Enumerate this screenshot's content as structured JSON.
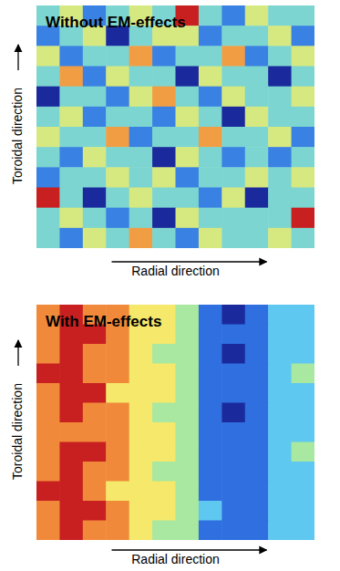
{
  "chart_data": [
    {
      "type": "heatmap",
      "title": "Without EM-effects",
      "x_label": "Radial direction",
      "y_label": "Toroidal direction",
      "tick_labels": false,
      "cells": [
        [
          0,
          1,
          -1,
          0,
          1,
          0,
          3,
          0,
          -1,
          1,
          0,
          0
        ],
        [
          -1,
          0,
          1,
          -2,
          0,
          1,
          1,
          -1,
          0,
          0,
          1,
          -1
        ],
        [
          1,
          -1,
          0,
          0,
          2,
          -1,
          0,
          0,
          2,
          -1,
          0,
          1
        ],
        [
          0,
          2,
          -1,
          1,
          0,
          0,
          -2,
          1,
          0,
          0,
          -2,
          0
        ],
        [
          -2,
          0,
          0,
          -1,
          1,
          2,
          0,
          -1,
          1,
          0,
          0,
          1
        ],
        [
          0,
          1,
          -1,
          0,
          0,
          -1,
          1,
          0,
          -2,
          1,
          0,
          0
        ],
        [
          1,
          0,
          0,
          2,
          -1,
          0,
          0,
          2,
          0,
          0,
          1,
          -1
        ],
        [
          0,
          -1,
          1,
          0,
          0,
          -2,
          1,
          0,
          -1,
          0,
          -1,
          0
        ],
        [
          -1,
          0,
          0,
          1,
          0,
          1,
          -1,
          0,
          0,
          1,
          0,
          1
        ],
        [
          3,
          0,
          -2,
          0,
          1,
          0,
          0,
          -1,
          1,
          -2,
          0,
          0
        ],
        [
          0,
          1,
          0,
          -1,
          0,
          -2,
          1,
          0,
          0,
          0,
          0,
          3
        ],
        [
          0,
          -1,
          1,
          0,
          2,
          0,
          -1,
          1,
          0,
          0,
          1,
          0
        ]
      ]
    },
    {
      "type": "heatmap",
      "title": "With EM-effects",
      "x_label": "Radial direction",
      "y_label": "Toroidal direction",
      "tick_labels": false,
      "cells": [
        [
          2,
          3,
          2,
          2,
          1,
          1,
          0,
          -2,
          -3,
          -2,
          -1,
          -1
        ],
        [
          2,
          3,
          3,
          2,
          1,
          1,
          0,
          -2,
          -2,
          -2,
          -1,
          -1
        ],
        [
          2,
          3,
          2,
          2,
          1,
          0,
          0,
          -2,
          -3,
          -2,
          -1,
          -1
        ],
        [
          3,
          3,
          2,
          2,
          1,
          1,
          0,
          -2,
          -2,
          -2,
          -1,
          0
        ],
        [
          2,
          3,
          3,
          1,
          1,
          1,
          0,
          -2,
          -2,
          -2,
          -1,
          -1
        ],
        [
          2,
          3,
          2,
          2,
          1,
          0,
          0,
          -2,
          -3,
          -2,
          -1,
          -1
        ],
        [
          2,
          2,
          2,
          2,
          1,
          1,
          0,
          -2,
          -2,
          -2,
          -1,
          -1
        ],
        [
          2,
          3,
          3,
          2,
          1,
          1,
          0,
          -2,
          -2,
          -2,
          -1,
          0
        ],
        [
          2,
          3,
          2,
          2,
          1,
          0,
          0,
          -2,
          -2,
          -2,
          -1,
          -1
        ],
        [
          3,
          3,
          2,
          1,
          1,
          1,
          0,
          -2,
          -2,
          -2,
          -1,
          -1
        ],
        [
          2,
          3,
          3,
          2,
          1,
          1,
          0,
          -1,
          -2,
          -2,
          -1,
          -1
        ],
        [
          2,
          3,
          2,
          2,
          1,
          0,
          0,
          -2,
          -2,
          -2,
          -1,
          -1
        ]
      ]
    }
  ]
}
